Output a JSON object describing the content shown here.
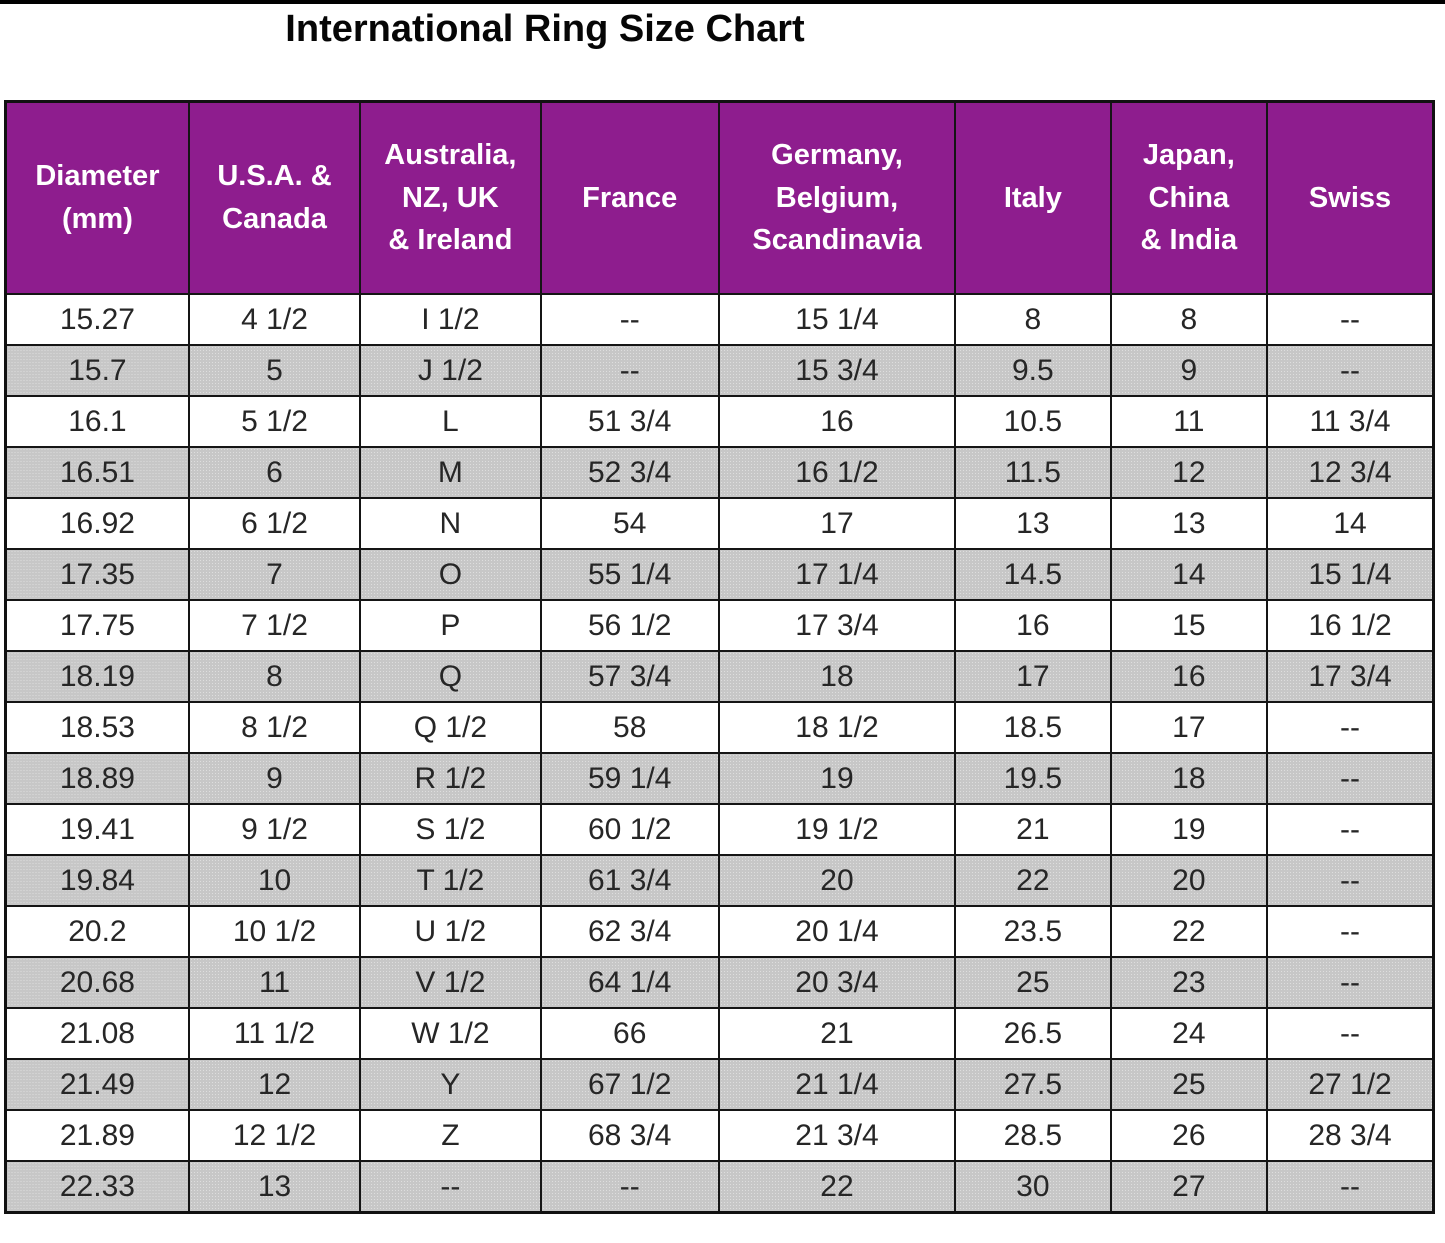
{
  "title": "International Ring Size Chart",
  "colors": {
    "header_bg": "#8e1d8e",
    "header_text": "#ffffff",
    "row_alt_bg": "#c7c7c7",
    "grid_line": "#151515",
    "title_text": "#060606"
  },
  "chart_data": {
    "type": "table",
    "title": "International Ring Size Chart",
    "columns": [
      "Diameter\n(mm)",
      "U.S.A. &\nCanada",
      "Australia,\nNZ, UK\n& Ireland",
      "France",
      "Germany,\nBelgium,\nScandinavia",
      "Italy",
      "Japan,\nChina\n& India",
      "Swiss"
    ],
    "rows": [
      [
        "15.27",
        "4 1/2",
        "I 1/2",
        "--",
        "15 1/4",
        "8",
        "8",
        "--"
      ],
      [
        "15.7",
        "5",
        "J 1/2",
        "--",
        "15 3/4",
        "9.5",
        "9",
        "--"
      ],
      [
        "16.1",
        "5 1/2",
        "L",
        "51 3/4",
        "16",
        "10.5",
        "11",
        "11 3/4"
      ],
      [
        "16.51",
        "6",
        "M",
        "52 3/4",
        "16 1/2",
        "11.5",
        "12",
        "12 3/4"
      ],
      [
        "16.92",
        "6 1/2",
        "N",
        "54",
        "17",
        "13",
        "13",
        "14"
      ],
      [
        "17.35",
        "7",
        "O",
        "55 1/4",
        "17 1/4",
        "14.5",
        "14",
        "15 1/4"
      ],
      [
        "17.75",
        "7 1/2",
        "P",
        "56 1/2",
        "17 3/4",
        "16",
        "15",
        "16 1/2"
      ],
      [
        "18.19",
        "8",
        "Q",
        "57 3/4",
        "18",
        "17",
        "16",
        "17 3/4"
      ],
      [
        "18.53",
        "8 1/2",
        "Q 1/2",
        "58",
        "18 1/2",
        "18.5",
        "17",
        "--"
      ],
      [
        "18.89",
        "9",
        "R 1/2",
        "59 1/4",
        "19",
        "19.5",
        "18",
        "--"
      ],
      [
        "19.41",
        "9 1/2",
        "S 1/2",
        "60 1/2",
        "19 1/2",
        "21",
        "19",
        "--"
      ],
      [
        "19.84",
        "10",
        "T 1/2",
        "61 3/4",
        "20",
        "22",
        "20",
        "--"
      ],
      [
        "20.2",
        "10 1/2",
        "U 1/2",
        "62 3/4",
        "20 1/4",
        "23.5",
        "22",
        "--"
      ],
      [
        "20.68",
        "11",
        "V 1/2",
        "64 1/4",
        "20 3/4",
        "25",
        "23",
        "--"
      ],
      [
        "21.08",
        "11 1/2",
        "W 1/2",
        "66",
        "21",
        "26.5",
        "24",
        "--"
      ],
      [
        "21.49",
        "12",
        "Y",
        "67 1/2",
        "21 1/4",
        "27.5",
        "25",
        "27 1/2"
      ],
      [
        "21.89",
        "12 1/2",
        "Z",
        "68 3/4",
        "21 3/4",
        "28.5",
        "26",
        "28 3/4"
      ],
      [
        "22.33",
        "13",
        "--",
        "--",
        "22",
        "30",
        "27",
        "--"
      ]
    ]
  }
}
